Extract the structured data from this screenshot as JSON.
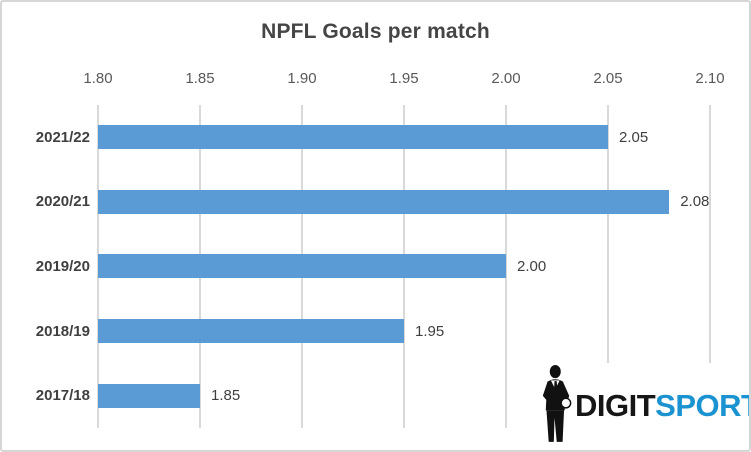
{
  "chart_data": {
    "type": "bar",
    "orientation": "horizontal",
    "title": "NPFL Goals per match",
    "categories": [
      "2021/22",
      "2020/21",
      "2019/20",
      "2018/19",
      "2017/18"
    ],
    "values": [
      2.05,
      2.08,
      2.0,
      1.95,
      1.85
    ],
    "data_labels": [
      "2.05",
      "2.08",
      "2.00",
      "1.95",
      "1.85"
    ],
    "x_ticks": [
      "1.80",
      "1.85",
      "1.90",
      "1.95",
      "2.00",
      "2.05",
      "2.10"
    ],
    "xlim": [
      1.8,
      2.1
    ],
    "grid": true,
    "axis_position": "top",
    "legend": "none"
  },
  "colors": {
    "bar": "#5B9BD5",
    "grid": "#D9D9D9",
    "tick_text": "#595959",
    "label_text": "#404040",
    "logo_blue": "#1B93D1",
    "logo_black": "#161616"
  },
  "branding": {
    "logo_text_black": "DIGIT",
    "logo_text_blue": "SPORT"
  }
}
